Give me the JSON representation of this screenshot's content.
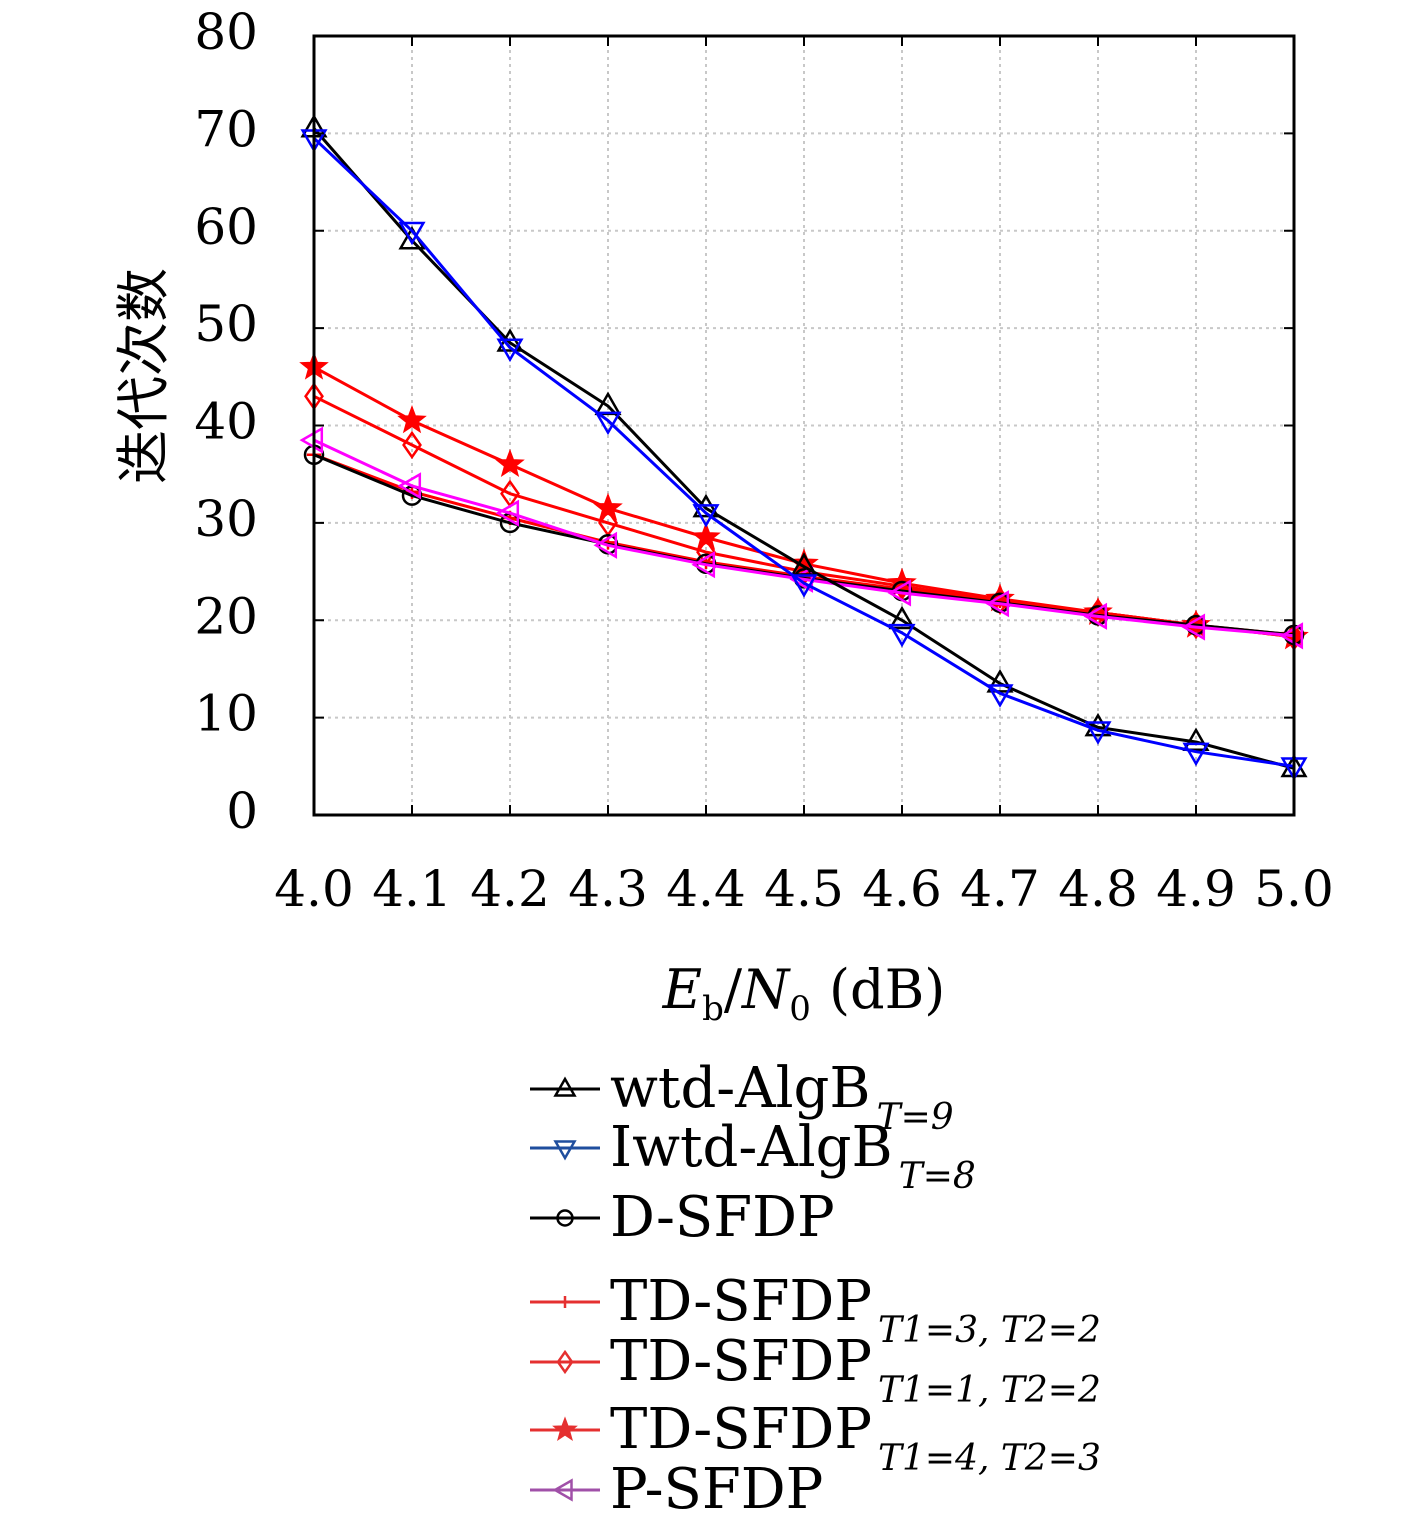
{
  "chart_data": {
    "type": "line",
    "title": "",
    "xlabel": {
      "main": "E",
      "main_sub": "b",
      "sep": "/",
      "main2": "N",
      "main2_sub": "0",
      "unit": "(dB)"
    },
    "ylabel": "迭代次数",
    "x": [
      4.0,
      4.1,
      4.2,
      4.3,
      4.4,
      4.5,
      4.6,
      4.7,
      4.8,
      4.9,
      5.0
    ],
    "xticks": [
      "4.0",
      "4.1",
      "4.2",
      "4.3",
      "4.4",
      "4.5",
      "4.6",
      "4.7",
      "4.8",
      "4.9",
      "5.0"
    ],
    "ylim": [
      0,
      80
    ],
    "yticks": [
      "0",
      "10",
      "20",
      "30",
      "40",
      "50",
      "60",
      "70",
      "80"
    ],
    "grid": true,
    "legend_position": "bottom",
    "series": [
      {
        "name": "wtd-AlgB",
        "sub": "T=9",
        "color": "#000000",
        "marker": "triangle-up",
        "values": [
          70.5,
          59.0,
          48.5,
          42.0,
          31.5,
          25.5,
          20.0,
          13.5,
          9.0,
          7.5,
          4.8
        ]
      },
      {
        "name": "Iwtd-AlgB",
        "sub": "T=8",
        "color": "#0000ff",
        "legend_color": "#1f4e9e",
        "marker": "triangle-down",
        "values": [
          69.5,
          60.0,
          48.0,
          40.5,
          31.0,
          23.8,
          18.7,
          12.5,
          8.7,
          6.5,
          5.0
        ]
      },
      {
        "name": "D-SFDP",
        "sub": "",
        "color": "#000000",
        "marker": "circle",
        "values": [
          37.0,
          32.8,
          30.0,
          27.8,
          25.8,
          24.3,
          23.0,
          21.8,
          20.5,
          19.5,
          18.5
        ]
      },
      {
        "name": "TD-SFDP",
        "sub": "T1=3,  T2=2",
        "color": "#ff0000",
        "legend_color": "#e53030",
        "marker": "plus",
        "values": [
          37.0,
          33.2,
          30.5,
          28.0,
          26.0,
          24.5,
          23.2,
          22.0,
          20.8,
          19.5,
          18.5
        ]
      },
      {
        "name": "TD-SFDP",
        "sub": "T1=1,  T2=2",
        "color": "#ff0000",
        "legend_color": "#e53030",
        "marker": "diamond",
        "values": [
          43.0,
          38.0,
          33.0,
          30.0,
          27.0,
          25.0,
          23.5,
          22.0,
          20.8,
          19.5,
          18.3
        ]
      },
      {
        "name": "TD-SFDP",
        "sub": "T1=4,  T2=3",
        "color": "#ff0000",
        "legend_color": "#e53030",
        "marker": "star",
        "values": [
          46.0,
          40.5,
          36.0,
          31.5,
          28.5,
          25.8,
          23.8,
          22.2,
          20.8,
          19.5,
          18.3
        ]
      },
      {
        "name": "P-SFDP",
        "sub": "",
        "color": "#ff00ff",
        "legend_color": "#a050a8",
        "marker": "triangle-left",
        "values": [
          38.5,
          33.8,
          31.0,
          27.7,
          25.7,
          24.2,
          22.8,
          21.7,
          20.4,
          19.3,
          18.4
        ]
      }
    ]
  }
}
